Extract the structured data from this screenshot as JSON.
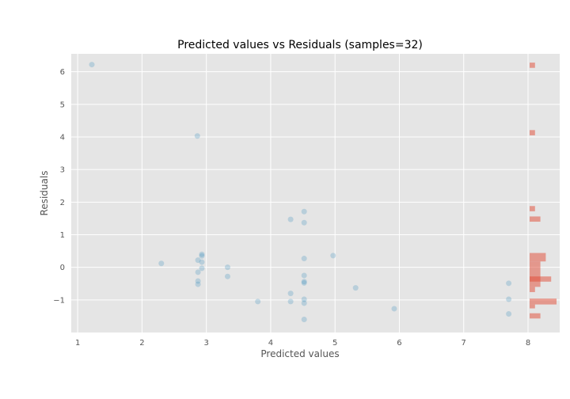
{
  "chart_data": {
    "type": "scatter",
    "title": "Predicted values vs Residuals (samples=32)",
    "xlabel": "Predicted values",
    "ylabel": "Residuals",
    "xlim": [
      0.9,
      8.0
    ],
    "ylim": [
      -2.0,
      6.55
    ],
    "x_ticks": [
      1,
      2,
      3,
      4,
      5,
      6,
      7,
      8
    ],
    "y_ticks": [
      -1,
      0,
      1,
      2,
      3,
      4,
      5,
      6
    ],
    "y_tick_labels": [
      "−1",
      "0",
      "1",
      "2",
      "3",
      "4",
      "5",
      "6"
    ],
    "grid": true,
    "background": "#e5e5e5",
    "point_color": "#348abd",
    "point_opacity": 0.25,
    "hist_color": "#e24a33",
    "hist_opacity": 0.5,
    "points": [
      {
        "x": 1.22,
        "y": 6.22
      },
      {
        "x": 2.86,
        "y": 4.03
      },
      {
        "x": 2.3,
        "y": 0.12
      },
      {
        "x": 2.87,
        "y": 0.22
      },
      {
        "x": 2.87,
        "y": -0.15
      },
      {
        "x": 2.87,
        "y": -0.42
      },
      {
        "x": 2.87,
        "y": -0.52
      },
      {
        "x": 2.93,
        "y": 0.4
      },
      {
        "x": 2.93,
        "y": 0.35
      },
      {
        "x": 2.93,
        "y": 0.16
      },
      {
        "x": 2.93,
        "y": -0.03
      },
      {
        "x": 3.33,
        "y": 0.0
      },
      {
        "x": 3.33,
        "y": -0.28
      },
      {
        "x": 3.8,
        "y": -1.05
      },
      {
        "x": 4.31,
        "y": 1.47
      },
      {
        "x": 4.31,
        "y": -0.8
      },
      {
        "x": 4.31,
        "y": -1.05
      },
      {
        "x": 4.52,
        "y": 1.71
      },
      {
        "x": 4.52,
        "y": 1.37
      },
      {
        "x": 4.52,
        "y": 0.27
      },
      {
        "x": 4.52,
        "y": -0.25
      },
      {
        "x": 4.52,
        "y": -0.44
      },
      {
        "x": 4.52,
        "y": -0.48
      },
      {
        "x": 4.52,
        "y": -0.98
      },
      {
        "x": 4.52,
        "y": -1.1
      },
      {
        "x": 4.52,
        "y": -1.6
      },
      {
        "x": 4.97,
        "y": 0.36
      },
      {
        "x": 5.32,
        "y": -0.63
      },
      {
        "x": 5.92,
        "y": -1.27
      },
      {
        "x": 7.7,
        "y": -0.49
      },
      {
        "x": 7.7,
        "y": -0.98
      },
      {
        "x": 7.7,
        "y": -1.43
      }
    ],
    "histogram": {
      "orientation": "horizontal",
      "bins": [
        {
          "y0": 6.12,
          "y1": 6.28,
          "count": 1
        },
        {
          "y0": 4.05,
          "y1": 4.21,
          "count": 1
        },
        {
          "y0": 1.72,
          "y1": 1.88,
          "count": 1
        },
        {
          "y0": 1.4,
          "y1": 1.56,
          "count": 2
        },
        {
          "y0": 0.18,
          "y1": 0.44,
          "count": 3
        },
        {
          "y0": -0.44,
          "y1": 0.18,
          "count": 2
        },
        {
          "y0": -0.44,
          "y1": -0.28,
          "count": 4
        },
        {
          "y0": -0.6,
          "y1": -0.44,
          "count": 2
        },
        {
          "y0": -0.76,
          "y1": -0.6,
          "count": 1
        },
        {
          "y0": -1.14,
          "y1": -0.96,
          "count": 5
        },
        {
          "y0": -1.26,
          "y1": -1.14,
          "count": 1
        },
        {
          "y0": -1.57,
          "y1": -1.41,
          "count": 2
        }
      ]
    }
  }
}
